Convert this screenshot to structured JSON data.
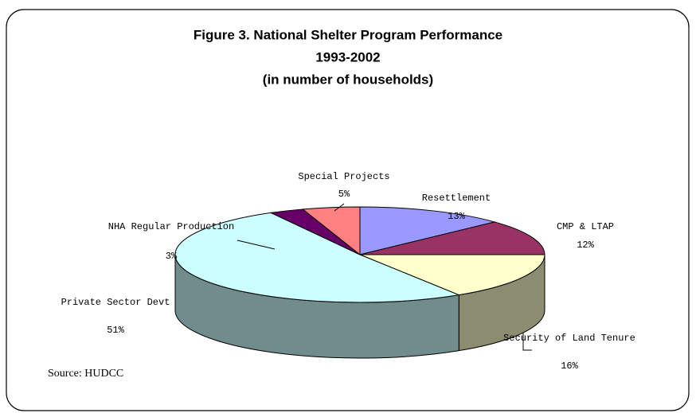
{
  "chart_data": {
    "type": "pie",
    "title": [
      "Figure 3. National Shelter Program Performance",
      "1993-2002",
      "(in number of households)"
    ],
    "categories": [
      "Resettlement",
      "CMP & LTAP",
      "Security of Land Tenure",
      "Private Sector Devt",
      "NHA Regular Production",
      "Special Projects"
    ],
    "values": [
      13,
      12,
      16,
      51,
      3,
      5
    ],
    "value_labels": [
      "13%",
      "12%",
      "16%",
      "51%",
      "3%",
      "5%"
    ],
    "colors": [
      "#9999ff",
      "#993366",
      "#ffffcc",
      "#ccffff",
      "#660066",
      "#ff8080"
    ],
    "source": "Source: HUDCC"
  }
}
